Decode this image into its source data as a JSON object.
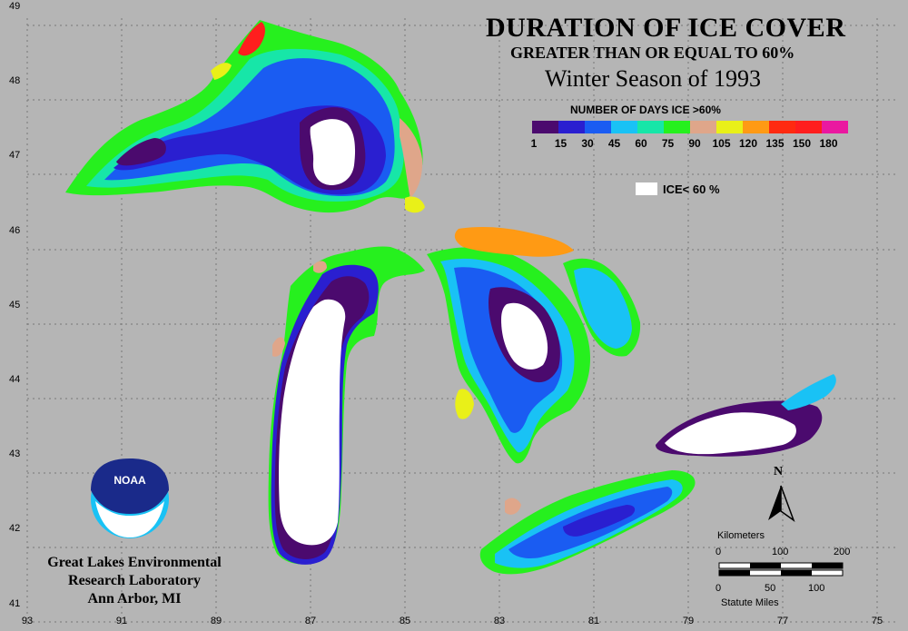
{
  "title": "DURATION OF ICE COVER",
  "subtitle": "GREATER THAN OR EQUAL TO 60%",
  "season": "Winter Season of 1993",
  "legend": {
    "title": "NUMBER OF DAYS ICE >60%",
    "colors": [
      "#4b0a6e",
      "#2a1fd0",
      "#1a5cf2",
      "#19c2f5",
      "#17e6a8",
      "#26f01e",
      "#dfa68a",
      "#e9f018",
      "#ff9a14",
      "#ff2a10",
      "#ff1e1e",
      "#ea18a0"
    ],
    "ticks": [
      "1",
      "15",
      "30",
      "45",
      "60",
      "75",
      "90",
      "105",
      "120",
      "135",
      "150",
      "180"
    ],
    "ice_label": "ICE< 60 %"
  },
  "latitudes": [
    "49",
    "48",
    "47",
    "46",
    "45",
    "44",
    "43",
    "42",
    "41"
  ],
  "longitudes": [
    "93",
    "91",
    "89",
    "87",
    "85",
    "83",
    "81",
    "79",
    "77",
    "75"
  ],
  "logo_text": "NOAA",
  "organization": [
    "Great Lakes Environmental",
    "Research Laboratory",
    "Ann Arbor, MI"
  ],
  "north_label": "N",
  "scale": {
    "km_label": "Kilometers",
    "km_ticks": [
      "0",
      "100",
      "200"
    ],
    "mi_ticks": [
      "0",
      "50",
      "100"
    ],
    "mi_label": "Statute Miles"
  }
}
